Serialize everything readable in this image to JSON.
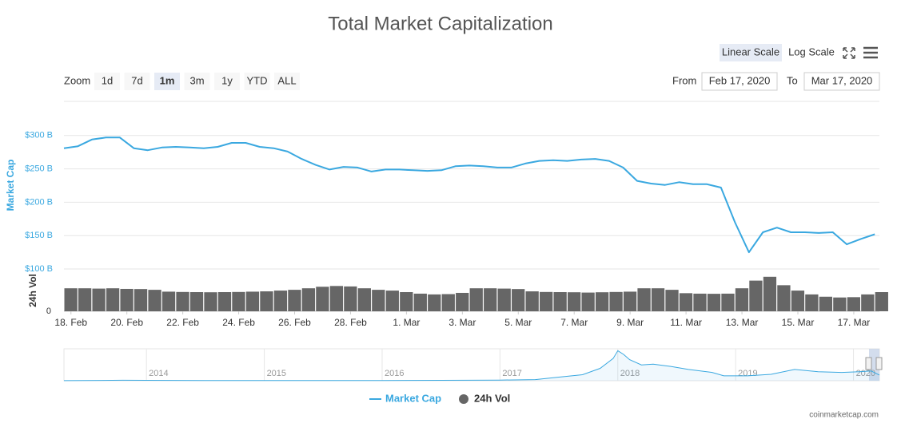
{
  "controls": {
    "zoom_label": "Zoom",
    "zoom_buttons": [
      "1d",
      "7d",
      "1m",
      "3m",
      "1y",
      "YTD",
      "ALL"
    ],
    "zoom_selected": 2,
    "from_label": "From",
    "from": "Feb 17, 2020",
    "to_label": "To",
    "to": "Mar 17, 2020",
    "scale_buttons": [
      "Linear Scale",
      "Log Scale"
    ],
    "scale_selected": 0
  },
  "credit": "coinmarketcap.com",
  "chart_data": [
    {
      "type": "line",
      "title": "Total Market Capitalization",
      "y_label": "Market Cap",
      "y2_label": "24h Vol",
      "x": [
        "2020-02-17T18:00",
        "2020-02-18T06:00",
        "2020-02-18T18:00",
        "2020-02-19T06:00",
        "2020-02-19T18:00",
        "2020-02-20T06:00",
        "2020-02-20T18:00",
        "2020-02-21T06:00",
        "2020-02-21T18:00",
        "2020-02-22T06:00",
        "2020-02-22T18:00",
        "2020-02-23T06:00",
        "2020-02-23T18:00",
        "2020-02-24T06:00",
        "2020-02-24T18:00",
        "2020-02-25T06:00",
        "2020-02-25T18:00",
        "2020-02-26T06:00",
        "2020-02-26T18:00",
        "2020-02-27T06:00",
        "2020-02-27T18:00",
        "2020-02-28T06:00",
        "2020-02-28T18:00",
        "2020-02-29T06:00",
        "2020-02-29T18:00",
        "2020-03-01T06:00",
        "2020-03-01T18:00",
        "2020-03-02T06:00",
        "2020-03-02T18:00",
        "2020-03-03T06:00",
        "2020-03-03T18:00",
        "2020-03-04T06:00",
        "2020-03-04T18:00",
        "2020-03-05T06:00",
        "2020-03-05T18:00",
        "2020-03-06T06:00",
        "2020-03-06T18:00",
        "2020-03-07T06:00",
        "2020-03-07T18:00",
        "2020-03-08T06:00",
        "2020-03-08T18:00",
        "2020-03-09T06:00",
        "2020-03-09T18:00",
        "2020-03-10T06:00",
        "2020-03-10T18:00",
        "2020-03-11T06:00",
        "2020-03-11T18:00",
        "2020-03-12T06:00",
        "2020-03-12T18:00",
        "2020-03-13T06:00",
        "2020-03-13T18:00",
        "2020-03-14T06:00",
        "2020-03-14T18:00",
        "2020-03-15T06:00",
        "2020-03-15T18:00",
        "2020-03-16T06:00",
        "2020-03-16T18:00",
        "2020-03-17T06:00",
        "2020-03-17T18:00"
      ],
      "xlim": [
        "2020-02-17T18:00",
        "2020-03-17T22:00"
      ],
      "xticks": [
        {
          "value": "2020-02-18T00:00",
          "label": "18. Feb"
        },
        {
          "value": "2020-02-20T00:00",
          "label": "20. Feb"
        },
        {
          "value": "2020-02-22T00:00",
          "label": "22. Feb"
        },
        {
          "value": "2020-02-24T00:00",
          "label": "24. Feb"
        },
        {
          "value": "2020-02-26T00:00",
          "label": "26. Feb"
        },
        {
          "value": "2020-02-28T00:00",
          "label": "28. Feb"
        },
        {
          "value": "2020-03-01T00:00",
          "label": "1. Mar"
        },
        {
          "value": "2020-03-03T00:00",
          "label": "3. Mar"
        },
        {
          "value": "2020-03-05T00:00",
          "label": "5. Mar"
        },
        {
          "value": "2020-03-07T00:00",
          "label": "7. Mar"
        },
        {
          "value": "2020-03-09T00:00",
          "label": "9. Mar"
        },
        {
          "value": "2020-03-11T00:00",
          "label": "11. Mar"
        },
        {
          "value": "2020-03-13T00:00",
          "label": "13. Mar"
        },
        {
          "value": "2020-03-15T00:00",
          "label": "15. Mar"
        },
        {
          "value": "2020-03-17T00:00",
          "label": "17. Mar"
        }
      ],
      "ylim": [
        100,
        350
      ],
      "yticks": [
        {
          "value": 100,
          "label": "$100 B"
        },
        {
          "value": 150,
          "label": "$150 B"
        },
        {
          "value": 200,
          "label": "$200 B"
        },
        {
          "value": 250,
          "label": "$250 B"
        },
        {
          "value": 300,
          "label": "$300 B"
        }
      ],
      "y2lim": [
        0,
        250
      ],
      "y2ticks": [
        0
      ],
      "grid": true,
      "series": [
        {
          "name": "Market Cap",
          "color": "#3aa8e0",
          "values": [
            281,
            284,
            294,
            297,
            297,
            281,
            278,
            282,
            283,
            282,
            281,
            283,
            289,
            289,
            283,
            281,
            276,
            265,
            256,
            249,
            253,
            252,
            246,
            249,
            249,
            248,
            247,
            248,
            254,
            255,
            254,
            252,
            252,
            258,
            262,
            263,
            262,
            264,
            265,
            262,
            252,
            232,
            228,
            226,
            230,
            227,
            227,
            222,
            170,
            125,
            155,
            162,
            155,
            155,
            154,
            155,
            137,
            145,
            152
          ]
        },
        {
          "name": "24h Vol",
          "color": "#666666",
          "axis": "y2",
          "values": [
            150,
            150,
            148,
            150,
            146,
            145,
            140,
            128,
            126,
            125,
            124,
            125,
            126,
            128,
            130,
            135,
            140,
            150,
            160,
            165,
            162,
            150,
            140,
            135,
            125,
            115,
            110,
            112,
            120,
            150,
            150,
            148,
            145,
            130,
            126,
            125,
            124,
            122,
            124,
            126,
            128,
            150,
            150,
            140,
            118,
            115,
            114,
            115,
            150,
            200,
            225,
            170,
            135,
            110,
            95,
            90,
            92,
            110,
            125
          ]
        }
      ]
    },
    {
      "type": "area",
      "x": [
        2013.3,
        2013.8,
        2014.0,
        2014.5,
        2015.0,
        2015.5,
        2016.0,
        2016.5,
        2017.0,
        2017.3,
        2017.5,
        2017.7,
        2017.85,
        2017.96,
        2018.0,
        2018.05,
        2018.1,
        2018.2,
        2018.3,
        2018.45,
        2018.6,
        2018.8,
        2018.9,
        2019.1,
        2019.3,
        2019.5,
        2019.7,
        2019.9,
        2020.05,
        2020.15,
        2020.22
      ],
      "values": [
        2,
        12,
        10,
        7,
        5,
        5,
        7,
        10,
        18,
        30,
        95,
        160,
        330,
        590,
        800,
        700,
        560,
        420,
        440,
        380,
        300,
        220,
        130,
        130,
        170,
        300,
        240,
        220,
        240,
        260,
        150
      ],
      "color": "#3aa8e0",
      "xlim": [
        2013.3,
        2020.22
      ],
      "xticks": [
        2014,
        2015,
        2016,
        2017,
        2018,
        2019,
        2020
      ],
      "ylim": [
        0,
        850
      ]
    }
  ]
}
